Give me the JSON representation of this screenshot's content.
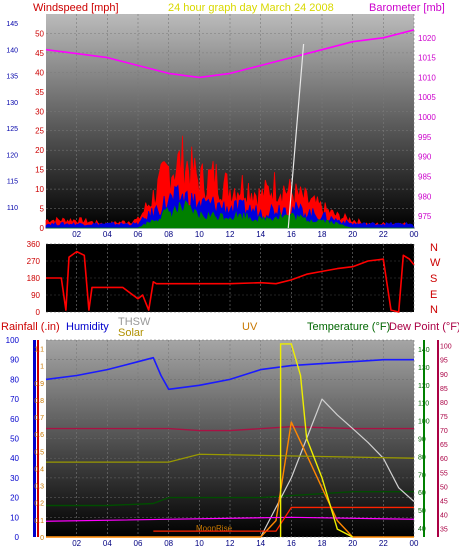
{
  "header": {
    "windspeed_label": "Windspeed [mph]",
    "graph_title": "24 hour graph day   March 24 2008",
    "barometer_label": "Barometer [mb]"
  },
  "footer_labels": {
    "rainfall": "Rainfall (.in)",
    "humidity": "Humidity",
    "thsw": "THSW",
    "solar": "Solar",
    "uv": "UV",
    "temperature": "Temperature (°F)",
    "dewpoint": "Dew Point (°F)",
    "moonrise": "MoonRise"
  },
  "colors": {
    "windspeed": "#cc0000",
    "barometer": "#ff00ff",
    "rainfall": "#0000ff",
    "humidity": "#0000cc",
    "solar": "#c0a000",
    "uv": "#c87800",
    "temperature": "#007000",
    "dewpoint": "#aa0044",
    "wind_gust": "#ff0000",
    "wind_avg": "#0000dd",
    "wind_low": "#008000"
  },
  "chart_data": [
    {
      "type": "line",
      "x_ticks": [
        "02",
        "04",
        "06",
        "08",
        "10",
        "12",
        "14",
        "16",
        "18",
        "20",
        "22",
        "00"
      ],
      "y_left_ticks": [
        0,
        5,
        10,
        15,
        20,
        25,
        30,
        35,
        40,
        45,
        50
      ],
      "y_left_ticks_extra": [
        110,
        115,
        120,
        125,
        130,
        135,
        140,
        145
      ],
      "y_right_ticks": [
        975,
        980,
        985,
        990,
        995,
        1000,
        1005,
        1010,
        1015,
        1020
      ],
      "y_left_label": "Windspeed [mph]",
      "y_right_label": "Barometer [mb]",
      "ylim_left": [
        0,
        55
      ],
      "ylim_right": [
        972,
        1026
      ],
      "series": [
        {
          "name": "Barometer [mb]",
          "axis": "right",
          "x": [
            0,
            2,
            4,
            6,
            8,
            10,
            12,
            14,
            16,
            18,
            20,
            22,
            24
          ],
          "values": [
            1017,
            1016,
            1015,
            1013,
            1011,
            1010,
            1011,
            1013,
            1015,
            1017,
            1019,
            1020,
            1022
          ]
        },
        {
          "axis": "left",
          "x": [
            0,
            2,
            4,
            6,
            7,
            8,
            9,
            10,
            11,
            12,
            13,
            14,
            15,
            16,
            17,
            18,
            19,
            20,
            21,
            22,
            23,
            24
          ],
          "values": [
            2,
            2,
            1,
            2,
            8,
            15,
            17,
            12,
            13,
            10,
            11,
            8,
            11,
            9,
            7,
            5,
            3,
            2,
            1,
            1,
            1,
            1
          ]
        },
        {
          "axis": "left",
          "x": [
            0,
            2,
            4,
            6,
            7,
            8,
            9,
            10,
            11,
            12,
            13,
            14,
            15,
            16,
            17,
            18,
            19,
            20,
            21,
            22,
            23,
            24
          ],
          "values": [
            1,
            1,
            1,
            1,
            4,
            7,
            8,
            6,
            6,
            5,
            5,
            4,
            5,
            5,
            4,
            3,
            2,
            1,
            1,
            1,
            1,
            1
          ]
        },
        {
          "axis": "left",
          "x": [
            0,
            2,
            4,
            6,
            7,
            8,
            9,
            10,
            11,
            12,
            13,
            14,
            15,
            16,
            17,
            18,
            19,
            20,
            21,
            22,
            23,
            24
          ],
          "values": [
            0,
            0,
            0,
            0,
            2,
            4,
            5,
            3,
            3,
            3,
            3,
            2,
            3,
            3,
            2,
            2,
            1,
            0,
            0,
            0,
            0,
            0
          ]
        }
      ]
    },
    {
      "type": "line",
      "x_ticks": [
        "02",
        "04",
        "06",
        "08",
        "10",
        "12",
        "14",
        "16",
        "18",
        "20",
        "22",
        "00"
      ],
      "y_left_ticks": [
        0,
        90,
        180,
        270,
        360
      ],
      "y_right_ticks": [
        "N",
        "E",
        "S",
        "W",
        "N"
      ],
      "ylim": [
        0,
        360
      ],
      "series": [
        {
          "x": [
            0,
            0.5,
            1,
            1.3,
            1.5,
            2,
            2.5,
            2.8,
            3,
            4,
            5,
            6,
            6.3,
            6.7,
            7,
            7.2,
            8,
            10,
            12,
            14,
            15,
            16,
            17,
            18,
            19,
            20,
            21,
            22,
            22.5,
            23,
            23.3,
            23.7,
            24
          ],
          "values": [
            180,
            180,
            180,
            10,
            290,
            320,
            300,
            10,
            130,
            130,
            130,
            70,
            90,
            10,
            160,
            150,
            150,
            150,
            150,
            155,
            150,
            170,
            200,
            215,
            230,
            240,
            270,
            280,
            10,
            0,
            300,
            280,
            250
          ]
        }
      ]
    },
    {
      "type": "line",
      "x_ticks": [
        "02",
        "04",
        "06",
        "08",
        "10",
        "12",
        "14",
        "16",
        "18",
        "20",
        "22",
        "00"
      ],
      "y_left_ticks_rainfall": [
        0,
        0.1,
        0.2,
        0.3,
        0.4,
        0.5,
        0.6,
        0.7,
        0.8,
        0.9,
        1
      ],
      "y_left_ticks_humidity": [
        0,
        10,
        20,
        30,
        40,
        50,
        60,
        70,
        80,
        90,
        100
      ],
      "y_left_ticks_uv": [
        0,
        0.1,
        0.2,
        0.3,
        0.4,
        0.5,
        0.6,
        0.7,
        0.8,
        0.9,
        1,
        1.1
      ],
      "y_right_ticks_temp": [
        35,
        40,
        45,
        50,
        55,
        60,
        65,
        70,
        75,
        80,
        85,
        90,
        95,
        100
      ],
      "y_right_ticks_dew": [
        40,
        50,
        60,
        70,
        80,
        90,
        100,
        110,
        120,
        130,
        140
      ],
      "ylim_humidity": [
        0,
        100
      ],
      "series": [
        {
          "name": "Humidity",
          "x": [
            0,
            2,
            4,
            6,
            7,
            7.5,
            8,
            10,
            12,
            14,
            16,
            18,
            20,
            22,
            24
          ],
          "values": [
            80,
            82,
            85,
            89,
            91,
            82,
            75,
            77,
            80,
            85,
            87,
            88,
            89,
            90,
            90
          ]
        },
        {
          "name": "Dew Point (°F)",
          "x": [
            0,
            4,
            8,
            10,
            12,
            16,
            20,
            24
          ],
          "values": [
            55,
            55,
            55,
            54,
            54,
            56,
            55,
            55
          ]
        },
        {
          "name": "Temperature (°F)",
          "x": [
            0,
            4,
            7,
            8,
            10,
            14,
            16,
            18,
            20,
            24
          ],
          "values": [
            16,
            16,
            17,
            20,
            20,
            20,
            21,
            22,
            23,
            23
          ]
        },
        {
          "name": "Solar",
          "x": [
            0,
            6,
            7,
            8,
            14,
            16,
            18,
            19,
            20,
            21,
            22,
            23,
            24
          ],
          "values": [
            0,
            0,
            0,
            0,
            0,
            30,
            70,
            62,
            55,
            48,
            40,
            25,
            18
          ]
        },
        {
          "name": "UV",
          "x": [
            0,
            14,
            15,
            16,
            17,
            18,
            19,
            20,
            24
          ],
          "values": [
            0,
            0,
            1,
            7,
            5,
            3,
            1,
            0,
            0
          ]
        }
      ]
    }
  ]
}
